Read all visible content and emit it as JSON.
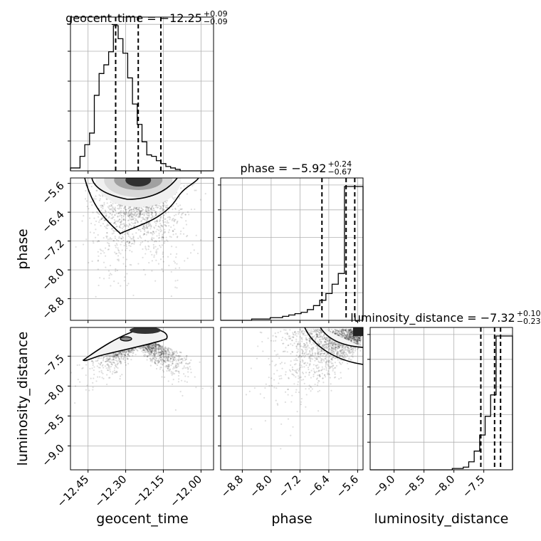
{
  "chart_data": {
    "type": "corner",
    "parameters": [
      "geocent_time",
      "phase",
      "luminosity_distance"
    ],
    "titles": [
      {
        "param": "geocent_time",
        "prefix": "geocent_time = −12.25",
        "plus": "+0.09",
        "minus": "−0.09"
      },
      {
        "param": "phase",
        "prefix": "phase = −5.92",
        "plus": "+0.24",
        "minus": "−0.67"
      },
      {
        "param": "luminosity_distance",
        "prefix": "luminosity_distance = −7.32",
        "plus": "+0.10",
        "minus": "−0.23"
      }
    ],
    "axis_labels": {
      "x": [
        "geocent_time",
        "phase",
        "luminosity_distance"
      ],
      "y": [
        "phase",
        "luminosity_distance"
      ]
    },
    "ticks": {
      "geocent_time": [
        "−12.45",
        "−12.30",
        "−12.15",
        "−12.00"
      ],
      "phase": [
        "−8.8",
        "−8.0",
        "−7.2",
        "−6.4",
        "−5.6"
      ],
      "phase_y": [
        "−5.6",
        "−6.4",
        "−7.2",
        "−8.0",
        "−8.8"
      ],
      "luminosity_distance": [
        "−9.0",
        "−8.5",
        "−8.0",
        "−7.5"
      ],
      "luminosity_distance_y": [
        "−7.5",
        "−8.0",
        "−8.5",
        "−9.0"
      ]
    },
    "ranges": {
      "geocent_time": [
        -12.52,
        -11.95
      ],
      "phase": [
        -9.4,
        -5.45
      ],
      "luminosity_distance": [
        -9.4,
        -7.02
      ]
    },
    "histograms": {
      "geocent_time": {
        "bin_edges_from": -12.52,
        "bin_width": 0.0193,
        "counts": [
          2,
          2,
          10,
          18,
          26,
          52,
          67,
          73,
          82,
          100,
          91,
          81,
          64,
          46,
          32,
          20,
          11,
          10,
          7,
          5,
          3,
          2,
          1,
          0,
          0,
          0,
          0,
          0,
          0,
          0
        ],
        "quantiles": [
          -12.34,
          -12.25,
          -12.16
        ]
      },
      "phase": {
        "counts": [
          0,
          0,
          0,
          0,
          0,
          1,
          1,
          1,
          2,
          2,
          3,
          4,
          5,
          6,
          8,
          11,
          15,
          20,
          27,
          35,
          100,
          100,
          100
        ],
        "quantiles": [
          -6.59,
          -5.92,
          -5.68
        ]
      },
      "luminosity_distance": {
        "counts": [
          0,
          0,
          0,
          0,
          0,
          0,
          0,
          0,
          0,
          0,
          0,
          0,
          0,
          0,
          0,
          1,
          1,
          2,
          6,
          14,
          26,
          40,
          56,
          100,
          100,
          100
        ],
        "quantiles": [
          -7.55,
          -7.32,
          -7.22
        ]
      }
    },
    "grid": true
  }
}
